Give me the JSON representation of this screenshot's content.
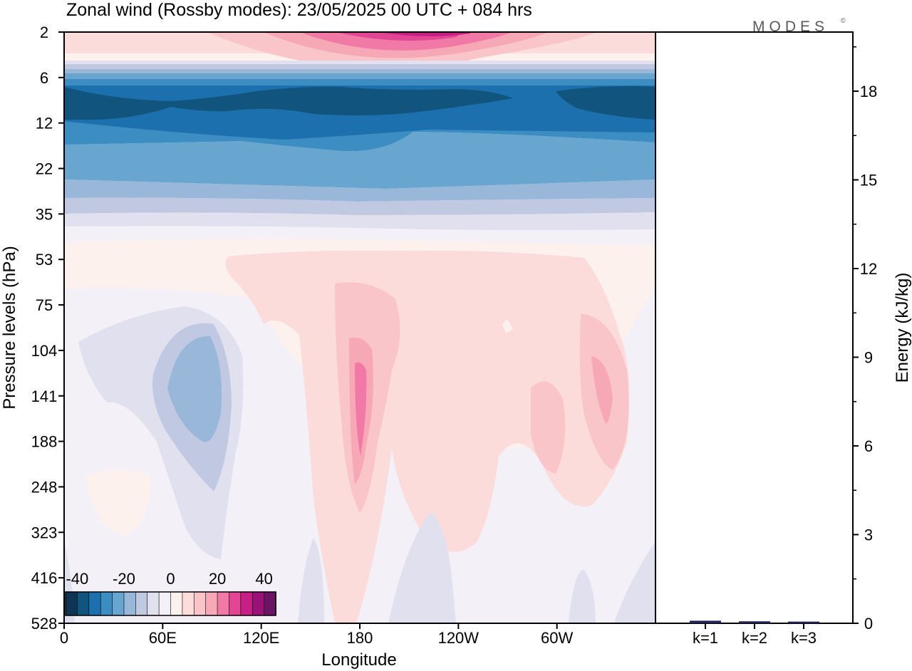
{
  "title": "Zonal wind (Rossby modes):  23/05/2025  00 UTC  + 084 hrs",
  "logo": "MODES",
  "logo_mark": "©",
  "chart_data": [
    {
      "type": "heatmap",
      "title": "Zonal wind (Rossby modes):  23/05/2025  00 UTC  + 084 hrs",
      "xlabel": "Longitude",
      "ylabel": "Pressure levels (hPa)",
      "x_ticks": [
        "0",
        "60E",
        "120E",
        "180",
        "120W",
        "60W"
      ],
      "y_ticks": [
        "2",
        "6",
        "12",
        "22",
        "35",
        "53",
        "75",
        "104",
        "141",
        "188",
        "248",
        "323",
        "416",
        "528"
      ],
      "colorbar": {
        "labels": [
          "-40",
          "-20",
          "0",
          "20",
          "40"
        ],
        "levels": [
          -45,
          -40,
          -35,
          -30,
          -25,
          -20,
          -15,
          -10,
          -5,
          0,
          5,
          10,
          15,
          20,
          25,
          30,
          35,
          40,
          45
        ],
        "colors": [
          "#0f3554",
          "#11557f",
          "#1c70ad",
          "#3b8dc2",
          "#69a6cf",
          "#99b7d8",
          "#c0c8e2",
          "#e0e0ef",
          "#f4f0f7",
          "#fdf1ee",
          "#fbdcda",
          "#f9c5c9",
          "#f7a8b7",
          "#f07aa5",
          "#e34595",
          "#c61f86",
          "#9a1276",
          "#6a1463"
        ]
      },
      "features": [
        {
          "band": "stratosphere-top",
          "level_from": 2,
          "level_to": 4,
          "max_value": 40,
          "sign": "westerly"
        },
        {
          "band": "easterly-jet",
          "level_from": 6,
          "level_to": 35,
          "min_value": -40,
          "sign": "easterly"
        },
        {
          "lon": 90,
          "level": 141,
          "value": -12
        },
        {
          "lon": 180,
          "level": 141,
          "value": 18
        },
        {
          "lon": 300,
          "level": 141,
          "value": 14
        },
        {
          "lon": 330,
          "level": 141,
          "value": 20
        }
      ]
    },
    {
      "type": "bar",
      "categories": [
        "k=1",
        "k=2",
        "k=3"
      ],
      "values": [
        0.05,
        0.03,
        0.02
      ],
      "ylabel": "Energy (kJ/kg)",
      "y_ticks": [
        "0",
        "3",
        "6",
        "9",
        "12",
        "15",
        "18"
      ],
      "ylim": [
        0,
        20
      ],
      "bar_color": "#1f1f5a"
    }
  ]
}
